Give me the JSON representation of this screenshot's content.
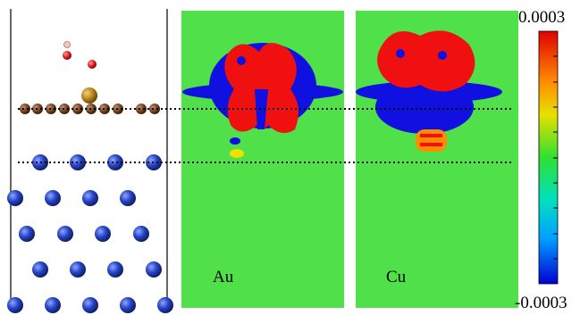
{
  "panels": [
    {
      "label": "Au"
    },
    {
      "label": "Cu"
    }
  ],
  "colorbar": {
    "max": 0.0003,
    "min": -0.0003
  }
}
